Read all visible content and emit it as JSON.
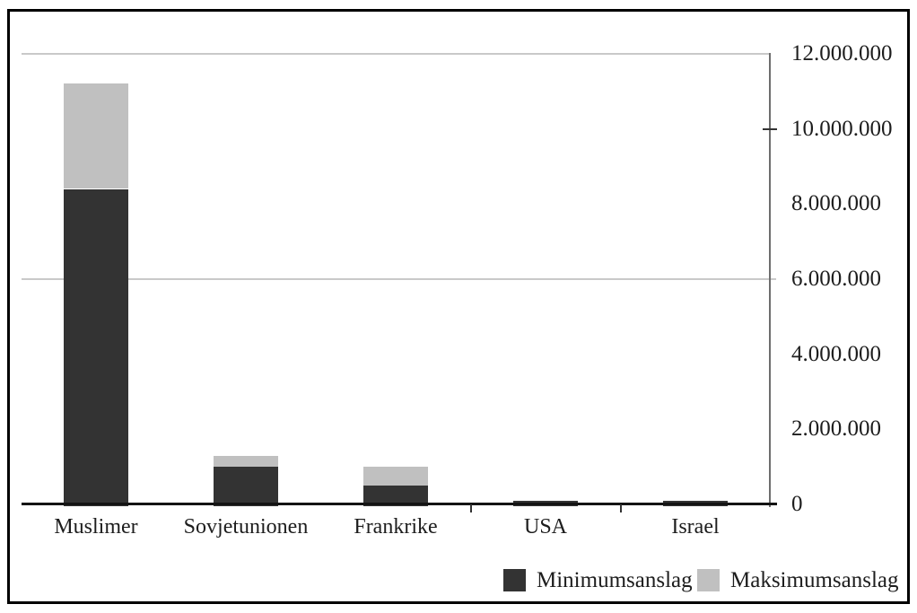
{
  "chart_data": {
    "type": "bar",
    "subtype": "stacked-min-max",
    "categories": [
      "Muslimer",
      "Sovjetunionen",
      "Frankrike",
      "USA",
      "Israel"
    ],
    "series": [
      {
        "name": "Minimumsanslag",
        "color": "#333333",
        "values": [
          8400000,
          1000000,
          500000,
          100000,
          100000
        ]
      },
      {
        "name": "Maksimumsanslag",
        "color": "#c0c0c0",
        "values": [
          11200000,
          1300000,
          1000000,
          100000,
          100000
        ]
      }
    ],
    "y_axis": {
      "side": "right",
      "min": 0,
      "max": 12000000,
      "ticks": [
        {
          "label": "0",
          "value": 0
        },
        {
          "label": "2.000.000",
          "value": 2000000
        },
        {
          "label": "4.000.000",
          "value": 4000000
        },
        {
          "label": "6.000.000",
          "value": 6000000
        },
        {
          "label": "8.000.000",
          "value": 8000000
        },
        {
          "label": "10.000.000",
          "value": 10000000
        },
        {
          "label": "12.000.000",
          "value": 12000000
        }
      ],
      "gridlines_at": [
        12000000,
        6000000
      ],
      "tick_marks_at": [
        10000000,
        0
      ]
    },
    "x_axis": {
      "boundary_tick_indices": [
        3,
        4
      ]
    },
    "legend": {
      "position": "bottom-right",
      "items": [
        "Minimumsanslag",
        "Maksimumsanslag"
      ]
    },
    "title": ""
  },
  "colors": {
    "bar_min": "#333333",
    "bar_max": "#c0c0c0",
    "gridline": "#c9c9c9",
    "axis": "#6e6e6e",
    "baseline": "#141414",
    "frame": "#000000",
    "text": "#1d1d1d"
  }
}
